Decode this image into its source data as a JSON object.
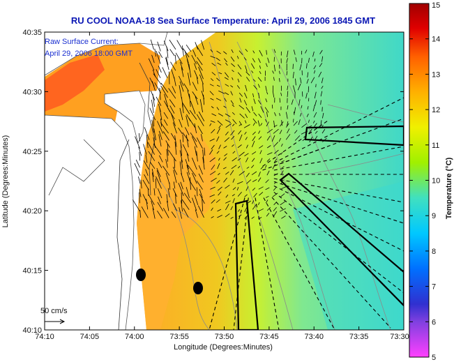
{
  "title": "RU COOL  NOAA-18 Sea Surface Temperature:  April 29, 2006 1845 GMT",
  "legend": {
    "line1": "Raw Surface Current:",
    "line2": "April 29, 2006 18:00 GMT"
  },
  "scale": {
    "label": "50 cm/s"
  },
  "axes": {
    "xlabel": "Longitude (Degrees:Minutes)",
    "ylabel": "Latitude (Degrees:Minutes)",
    "x_ticks": [
      "74:10",
      "74:05",
      "74:00",
      "73:55",
      "73:50",
      "73:45",
      "73:40",
      "73:35",
      "73:30"
    ],
    "y_ticks": [
      "40:35",
      "40:30",
      "40:25",
      "40:20",
      "40:15",
      "40:10"
    ]
  },
  "colorbar": {
    "label": "Temperature (°C)",
    "ticks": [
      "15",
      "14",
      "13",
      "12",
      "11",
      "10",
      "9",
      "8",
      "7",
      "6",
      "5"
    ],
    "range": [
      5,
      15
    ],
    "colors": [
      "#ff40ff",
      "#3030d0",
      "#0060ff",
      "#00c0ff",
      "#40e0c0",
      "#a0f000",
      "#f0f000",
      "#ffb000",
      "#ff6000",
      "#e00000",
      "#a00000"
    ]
  },
  "markers": {
    "color": "#000000"
  },
  "colors": {
    "water_mid": "#80e890",
    "water_warm": "#ffb030",
    "water_hot": "#ff5020",
    "water_cool": "#40d8c8",
    "land": "#ffffff",
    "vectors": "#000000"
  }
}
